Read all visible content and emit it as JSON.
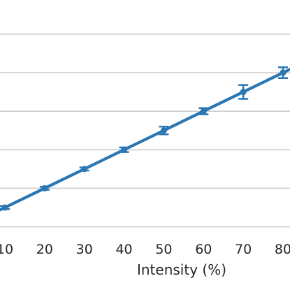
{
  "chart_data": {
    "type": "line",
    "title": "",
    "xlabel": "Intensity (%)",
    "ylabel": "",
    "x": [
      10,
      20,
      30,
      40,
      50,
      60,
      70,
      80
    ],
    "x_tick_labels": [
      "10",
      "20",
      "30",
      "40",
      "50",
      "60",
      "70",
      "80"
    ],
    "xlim": [
      7.5,
      82.5
    ],
    "ylim": [
      0,
      6.6
    ],
    "grid": "horizontal",
    "legend": "none",
    "series": [
      {
        "values": [
          0.5,
          1.0,
          1.5,
          2.0,
          2.5,
          3.0,
          3.5,
          4.0
        ],
        "errors": [
          0.04,
          0.04,
          0.04,
          0.06,
          0.1,
          0.08,
          0.18,
          0.14
        ],
        "color": "#2a77b4"
      }
    ],
    "grid_color": "#cccccc",
    "axis_text_color": "#262626"
  }
}
